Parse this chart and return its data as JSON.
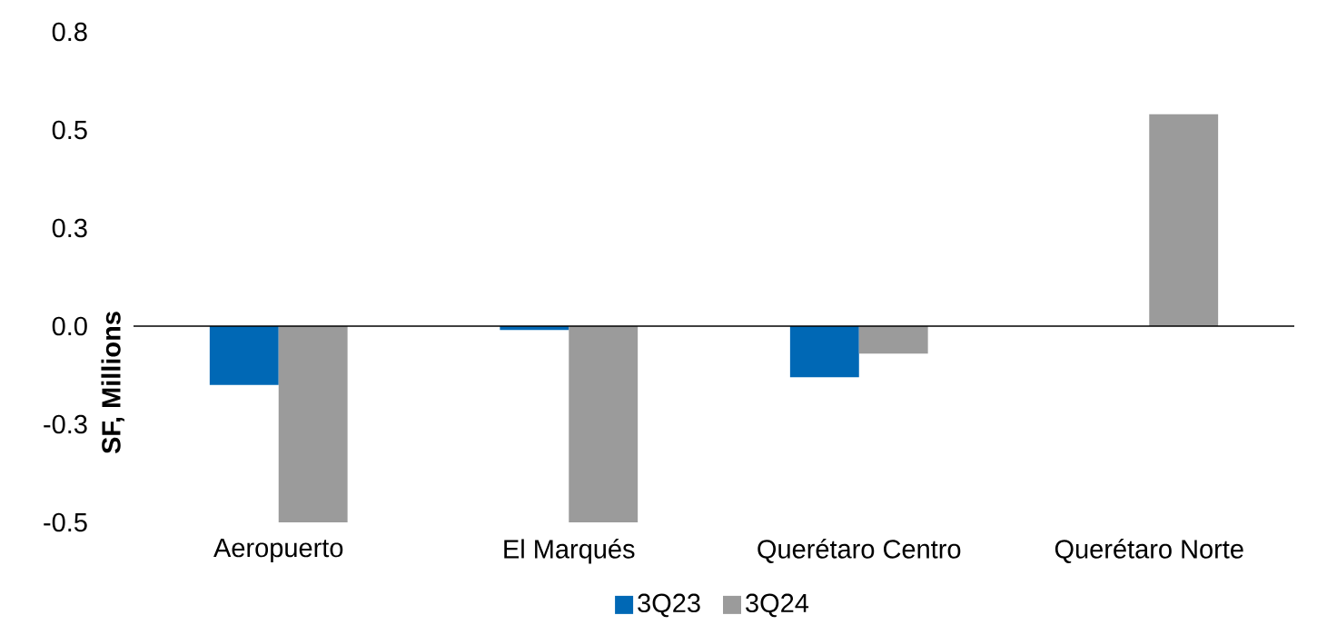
{
  "chart_data": {
    "type": "bar",
    "ylabel": "SF, Millions",
    "categories": [
      "Aeropuerto",
      "El Marqués",
      "Querétaro Centro",
      "Querétaro Norte"
    ],
    "series": [
      {
        "name": "3Q23",
        "color": "#0068b5",
        "values": [
          -0.15,
          -0.01,
          -0.13,
          0
        ]
      },
      {
        "name": "3Q24",
        "color": "#9b9b9b",
        "values": [
          -0.5,
          -0.5,
          -0.07,
          0.54
        ]
      }
    ],
    "ylim": [
      -0.5,
      0.75
    ],
    "yticks": [
      {
        "value": 0.75,
        "label": "0.8"
      },
      0.5,
      {
        "value": 0.25,
        "label": "0.3"
      },
      {
        "value": 0,
        "label": "0.0"
      },
      {
        "value": -0.25,
        "label": "-0.3"
      },
      -0.5
    ],
    "legend": "bottom"
  }
}
